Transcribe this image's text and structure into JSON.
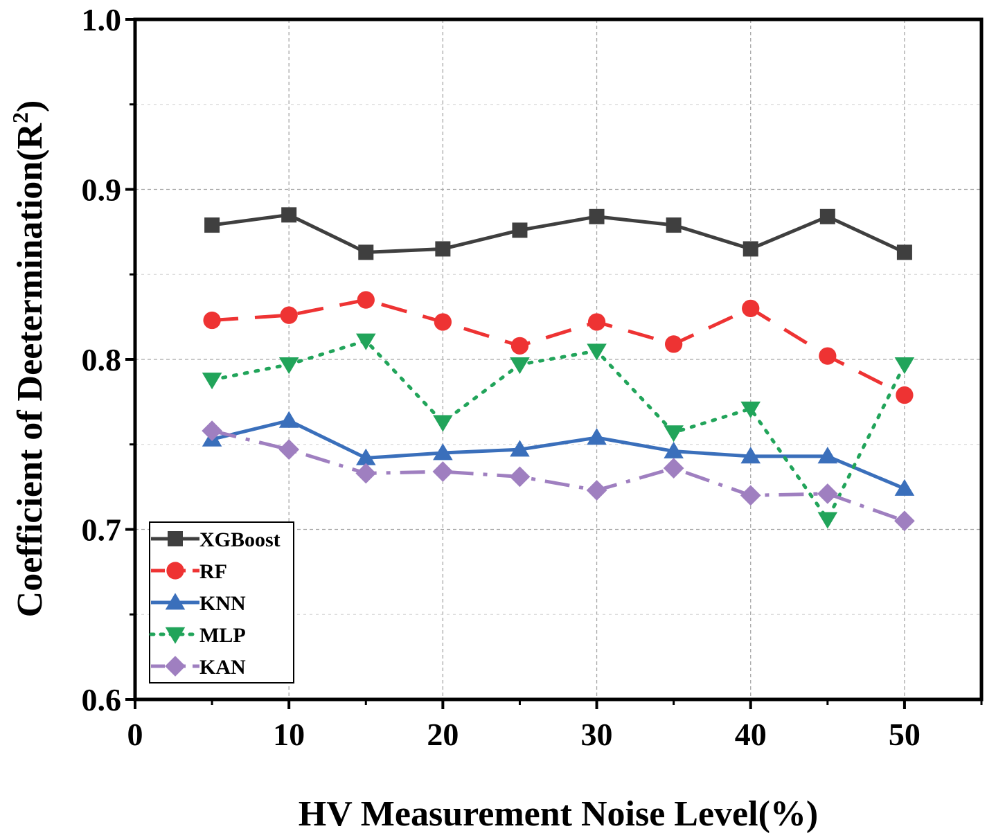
{
  "chart_data": {
    "type": "line",
    "title": "",
    "xlabel": "HV Measurement Noise Level(%)",
    "ylabel": "Coefficient of Deetermination(R",
    "ylabel_superscript": "2",
    "ylabel_suffix": ")",
    "xlim": [
      0,
      55
    ],
    "ylim": [
      0.6,
      1.0
    ],
    "x_ticks": [
      0,
      10,
      20,
      30,
      40,
      50
    ],
    "x_tick_labels": [
      "0",
      "10",
      "20",
      "30",
      "40",
      "50"
    ],
    "y_ticks": [
      0.6,
      0.7,
      0.8,
      0.9,
      1.0
    ],
    "y_tick_labels": [
      "0.6",
      "0.7",
      "0.8",
      "0.9",
      "1.0"
    ],
    "grid": true,
    "legend_position": "bottom-left",
    "x": [
      5,
      10,
      15,
      20,
      25,
      30,
      35,
      40,
      45,
      50
    ],
    "series": [
      {
        "name": "XGBoost",
        "color": "#3f3f3f",
        "marker": "square",
        "line_style": "solid",
        "values": [
          0.879,
          0.885,
          0.863,
          0.865,
          0.876,
          0.884,
          0.879,
          0.865,
          0.884,
          0.863
        ]
      },
      {
        "name": "RF",
        "color": "#ee3333",
        "marker": "circle",
        "line_style": "dash",
        "values": [
          0.823,
          0.826,
          0.835,
          0.822,
          0.808,
          0.822,
          0.809,
          0.83,
          0.802,
          0.779
        ]
      },
      {
        "name": "KNN",
        "color": "#3a6fbb",
        "marker": "triangle-up",
        "line_style": "solid",
        "values": [
          0.753,
          0.764,
          0.742,
          0.745,
          0.747,
          0.754,
          0.746,
          0.743,
          0.743,
          0.724
        ]
      },
      {
        "name": "MLP",
        "color": "#21a45a",
        "marker": "triangle-down",
        "line_style": "dot",
        "values": [
          0.788,
          0.797,
          0.811,
          0.763,
          0.797,
          0.805,
          0.757,
          0.771,
          0.706,
          0.797
        ]
      },
      {
        "name": "KAN",
        "color": "#9f7fc0",
        "marker": "diamond",
        "line_style": "dashdot",
        "values": [
          0.758,
          0.747,
          0.733,
          0.734,
          0.731,
          0.723,
          0.736,
          0.72,
          0.721,
          0.705
        ]
      }
    ]
  }
}
